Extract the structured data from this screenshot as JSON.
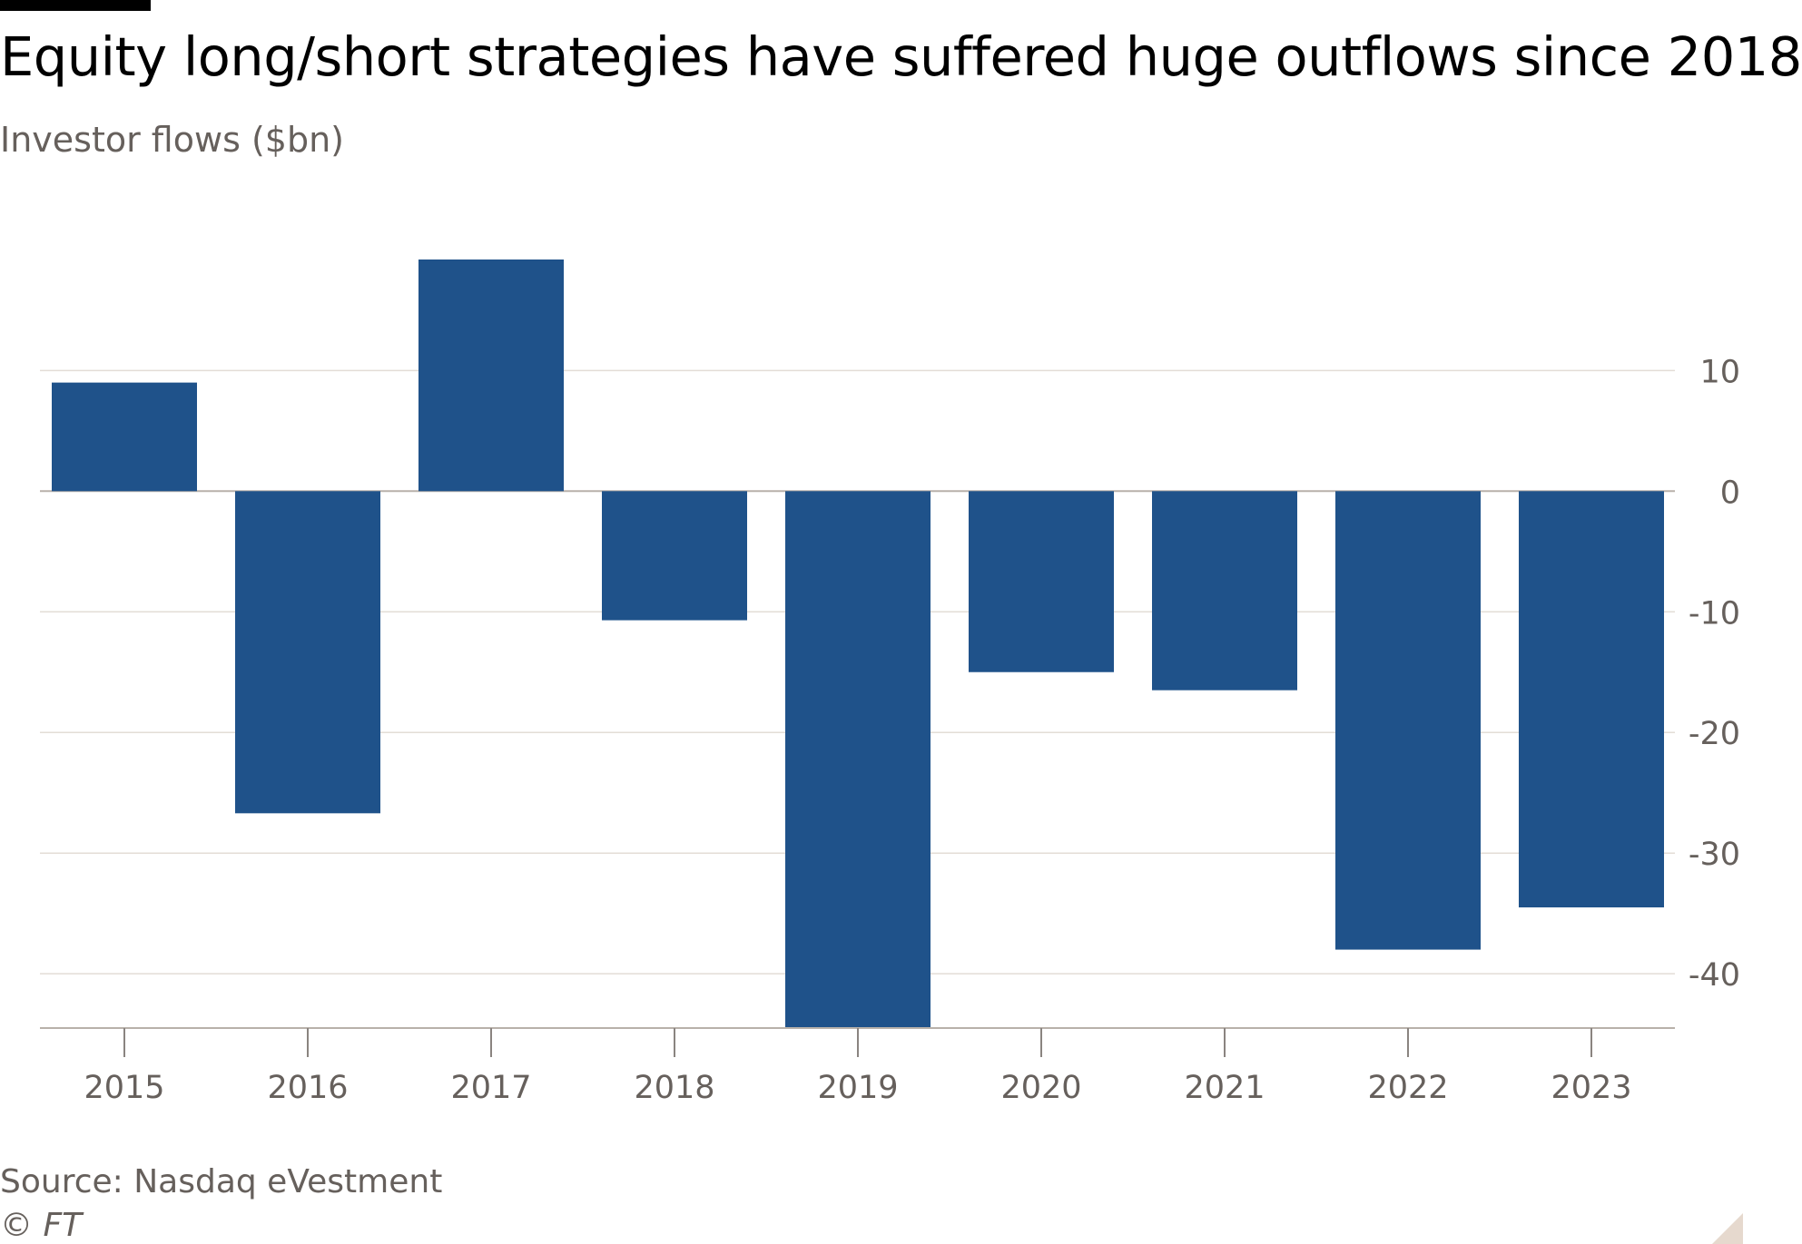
{
  "chart_data": {
    "type": "bar",
    "title": "Equity long/short strategies have suffered huge outflows since 2018",
    "subtitle": "Investor flows ($bn)",
    "categories": [
      "2015",
      "2016",
      "2017",
      "2018",
      "2019",
      "2020",
      "2021",
      "2022",
      "2023"
    ],
    "values": [
      9,
      -26.7,
      19.2,
      -10.7,
      -44.5,
      -15,
      -16.5,
      -38,
      -34.5
    ],
    "ylim": [
      -44.5,
      19.2
    ],
    "yticks": [
      10,
      0,
      -10,
      -20,
      -30,
      -40
    ],
    "ytick_labels": [
      "10",
      "0",
      "-10",
      "-20",
      "-30",
      "-40"
    ],
    "y_axis_position": "right",
    "grid": true,
    "bar_color": "#1f528a",
    "source": "Source: Nasdaq eVestment",
    "copyright": "© FT"
  }
}
